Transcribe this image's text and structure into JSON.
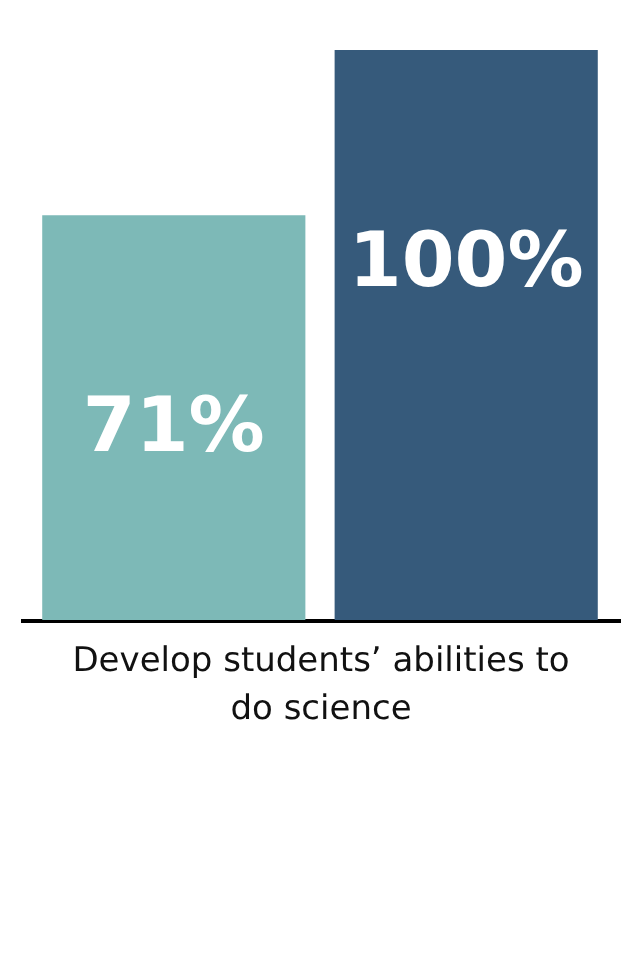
{
  "chart_data": {
    "type": "bar",
    "categories": [
      null
    ],
    "xlabel": "Develop students’ abilities to do science",
    "series": [
      {
        "color": "#7db9b7",
        "values": [
          71
        ],
        "value_labels": [
          "71%"
        ]
      },
      {
        "color": "#365a7b",
        "values": [
          100
        ],
        "value_labels": [
          "100%"
        ]
      }
    ]
  }
}
